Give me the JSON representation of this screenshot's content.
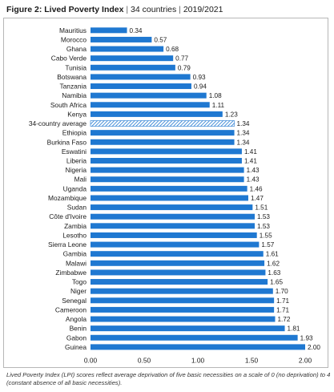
{
  "title": {
    "bold": "Figure 2: Lived Poverty Index",
    "countries": "34 countries",
    "years": "2019/2021",
    "separator": "|"
  },
  "footnote": "Lived Poverty Index (LPI) scores reflect average deprivation of five basic necessities on a scale of 0 (no deprivation) to 4 (constant absence of all basic necessities).",
  "colors": {
    "bar": "#1f78d1",
    "average_hatch": "#1f78d1",
    "text": "#1a1a1a"
  },
  "chart_data": {
    "type": "bar",
    "orientation": "horizontal",
    "categories": [
      "Mauritius",
      "Morocco",
      "Ghana",
      "Cabo Verde",
      "Tunisia",
      "Botswana",
      "Tanzania",
      "Namibia",
      "South Africa",
      "Kenya",
      "34-country average",
      "Ethiopia",
      "Burkina Faso",
      "Eswatini",
      "Liberia",
      "Nigeria",
      "Mali",
      "Uganda",
      "Mozambique",
      "Sudan",
      "Côte d'Ivoire",
      "Zambia",
      "Lesotho",
      "Sierra Leone",
      "Gambia",
      "Malawi",
      "Zimbabwe",
      "Togo",
      "Niger",
      "Senegal",
      "Cameroon",
      "Angola",
      "Benin",
      "Gabon",
      "Guinea"
    ],
    "values": [
      0.34,
      0.57,
      0.68,
      0.77,
      0.79,
      0.93,
      0.94,
      1.08,
      1.11,
      1.23,
      1.34,
      1.34,
      1.34,
      1.41,
      1.41,
      1.43,
      1.43,
      1.46,
      1.47,
      1.51,
      1.53,
      1.53,
      1.55,
      1.57,
      1.61,
      1.62,
      1.63,
      1.65,
      1.7,
      1.71,
      1.71,
      1.72,
      1.81,
      1.93,
      2.0
    ],
    "value_labels": [
      "0.34",
      "0.57",
      "0.68",
      "0.77",
      "0.79",
      "0.93",
      "0.94",
      "1.08",
      "1.11",
      "1.23",
      "1.34",
      "1.34",
      "1.34",
      "1.41",
      "1.41",
      "1.43",
      "1.43",
      "1.46",
      "1.47",
      "1.51",
      "1.53",
      "1.53",
      "1.55",
      "1.57",
      "1.61",
      "1.62",
      "1.63",
      "1.65",
      "1.70",
      "1.71",
      "1.71",
      "1.72",
      "1.81",
      "1.93",
      "2.00"
    ],
    "highlight": "34-country average",
    "xlim": [
      0,
      2
    ],
    "xticks": [
      "0.00",
      "0.50",
      "1.00",
      "1.50",
      "2.00"
    ],
    "grid": false,
    "legend": "none"
  }
}
